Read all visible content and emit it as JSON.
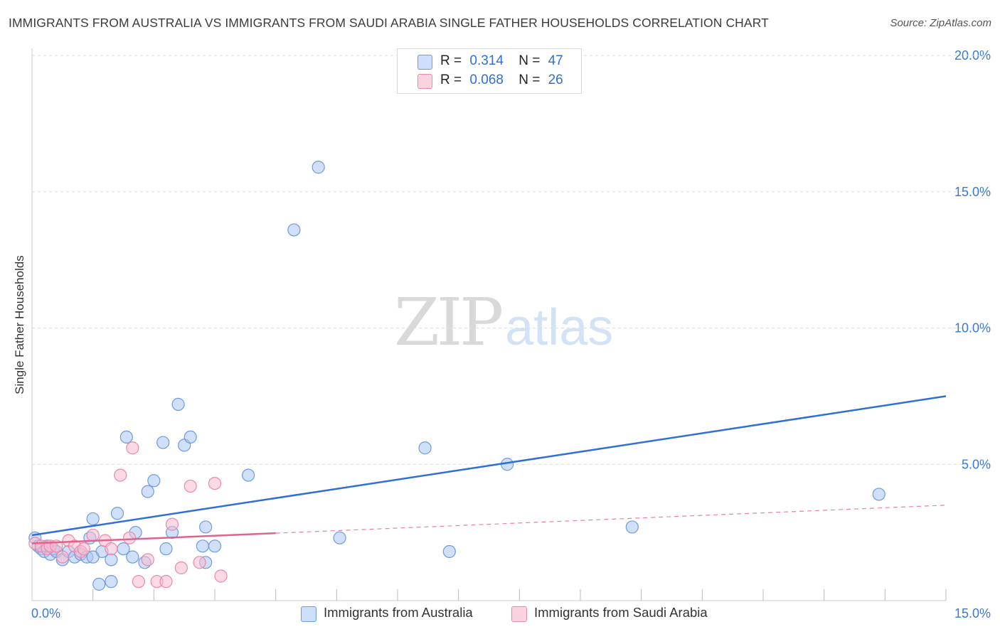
{
  "title": "IMMIGRANTS FROM AUSTRALIA VS IMMIGRANTS FROM SAUDI ARABIA SINGLE FATHER HOUSEHOLDS CORRELATION CHART",
  "source": "Source: ZipAtlas.com",
  "watermark": {
    "zip": "ZIP",
    "atlas": "atlas"
  },
  "legend": {
    "rows": [
      {
        "r_label": "R =",
        "r_value": "0.314",
        "n_label": "N =",
        "n_value": "47",
        "color": "#a9c7f2"
      },
      {
        "r_label": "R =",
        "r_value": "0.068",
        "n_label": "N =",
        "n_value": "26",
        "color": "#f7bcd0"
      }
    ]
  },
  "bottom_legend": {
    "australia": "Immigrants from Australia",
    "saudi": "Immigrants from Saudi Arabia"
  },
  "chart_data": {
    "type": "scatter",
    "title": "IMMIGRANTS FROM AUSTRALIA VS IMMIGRANTS FROM SAUDI ARABIA SINGLE FATHER HOUSEHOLDS CORRELATION CHART",
    "xlabel": "",
    "ylabel": "Single Father Households",
    "xlim": [
      0,
      15
    ],
    "ylim": [
      0,
      20
    ],
    "x_tick_labels": [
      "0.0%",
      "15.0%"
    ],
    "y_ticks": [
      5,
      10,
      15,
      20
    ],
    "y_tick_labels": [
      "5.0%",
      "10.0%",
      "15.0%",
      "20.0%"
    ],
    "grid": true,
    "series": [
      {
        "name": "Immigrants from Australia",
        "color": "#a9c7f2",
        "edge": "#6e9bdc",
        "line_color": "#2f6fd6",
        "trend": {
          "x0": 0,
          "y0": 2.4,
          "x1": 15,
          "y1": 7.5,
          "dashed_from": null
        },
        "points": [
          [
            0.05,
            2.3
          ],
          [
            0.1,
            2.0
          ],
          [
            0.15,
            1.9
          ],
          [
            0.2,
            1.8
          ],
          [
            0.3,
            1.7
          ],
          [
            0.35,
            1.9
          ],
          [
            0.4,
            1.8
          ],
          [
            0.5,
            1.5
          ],
          [
            0.6,
            1.8
          ],
          [
            0.7,
            1.6
          ],
          [
            0.8,
            1.7
          ],
          [
            0.9,
            1.6
          ],
          [
            0.95,
            2.3
          ],
          [
            1.0,
            3.0
          ],
          [
            1.1,
            0.6
          ],
          [
            1.15,
            1.8
          ],
          [
            1.3,
            0.7
          ],
          [
            1.3,
            1.5
          ],
          [
            1.4,
            3.2
          ],
          [
            1.5,
            1.9
          ],
          [
            1.55,
            6.0
          ],
          [
            1.65,
            1.6
          ],
          [
            1.7,
            2.5
          ],
          [
            1.85,
            1.4
          ],
          [
            1.9,
            4.0
          ],
          [
            2.0,
            4.4
          ],
          [
            2.15,
            5.8
          ],
          [
            2.2,
            1.9
          ],
          [
            2.3,
            2.5
          ],
          [
            2.4,
            7.2
          ],
          [
            2.5,
            5.7
          ],
          [
            2.6,
            6.0
          ],
          [
            2.8,
            2.0
          ],
          [
            2.85,
            1.4
          ],
          [
            2.85,
            2.7
          ],
          [
            3.0,
            2.0
          ],
          [
            3.55,
            4.6
          ],
          [
            4.3,
            13.6
          ],
          [
            4.7,
            15.9
          ],
          [
            5.05,
            2.3
          ],
          [
            6.45,
            5.6
          ],
          [
            6.85,
            1.8
          ],
          [
            7.8,
            5.0
          ],
          [
            9.85,
            2.7
          ],
          [
            13.9,
            3.9
          ],
          [
            1.0,
            1.6
          ],
          [
            0.25,
            2.0
          ]
        ]
      },
      {
        "name": "Immigrants from Saudi Arabia",
        "color": "#f7bcd0",
        "edge": "#e88aaa",
        "line_color": "#e0628e",
        "trend": {
          "x0": 0,
          "y0": 2.1,
          "x1": 15,
          "y1": 3.5,
          "solid_until": 4.0
        },
        "points": [
          [
            0.05,
            2.1
          ],
          [
            0.15,
            2.0
          ],
          [
            0.25,
            1.9
          ],
          [
            0.3,
            2.0
          ],
          [
            0.4,
            2.0
          ],
          [
            0.5,
            1.6
          ],
          [
            0.6,
            2.2
          ],
          [
            0.7,
            2.0
          ],
          [
            0.8,
            1.8
          ],
          [
            0.85,
            1.9
          ],
          [
            1.0,
            2.4
          ],
          [
            1.2,
            2.2
          ],
          [
            1.3,
            1.9
          ],
          [
            1.45,
            4.6
          ],
          [
            1.6,
            2.3
          ],
          [
            1.65,
            5.6
          ],
          [
            1.75,
            0.7
          ],
          [
            1.9,
            1.5
          ],
          [
            2.05,
            0.7
          ],
          [
            2.2,
            0.7
          ],
          [
            2.3,
            2.8
          ],
          [
            2.45,
            1.2
          ],
          [
            2.6,
            4.2
          ],
          [
            2.75,
            1.4
          ],
          [
            3.0,
            4.3
          ],
          [
            3.1,
            0.9
          ]
        ]
      }
    ]
  }
}
